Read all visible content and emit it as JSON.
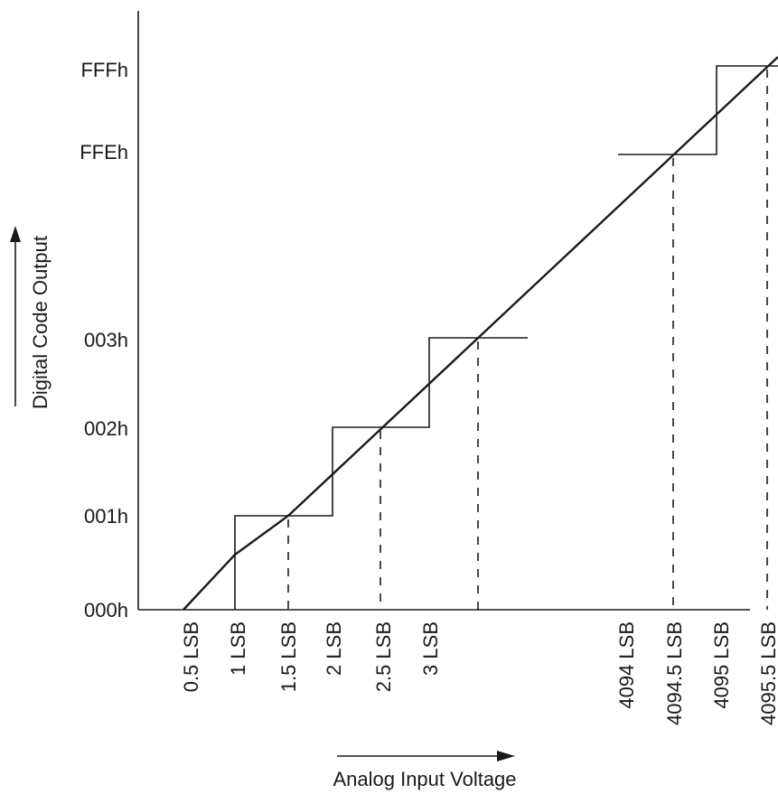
{
  "y_axis": {
    "label": "Digital Code Output",
    "ticks": [
      "000h",
      "001h",
      "002h",
      "003h",
      "FFEh",
      "FFFh"
    ]
  },
  "x_axis": {
    "label": "Analog Input Voltage",
    "ticks": [
      "0.5 LSB",
      "1 LSB",
      "1.5 LSB",
      "2 LSB",
      "2.5 LSB",
      "3 LSB",
      "4094 LSB",
      "4094.5 LSB",
      "4095 LSB",
      "4095.5 LSB"
    ]
  },
  "colors": {
    "line": "#1a1a1a",
    "background": "#ffffff"
  }
}
